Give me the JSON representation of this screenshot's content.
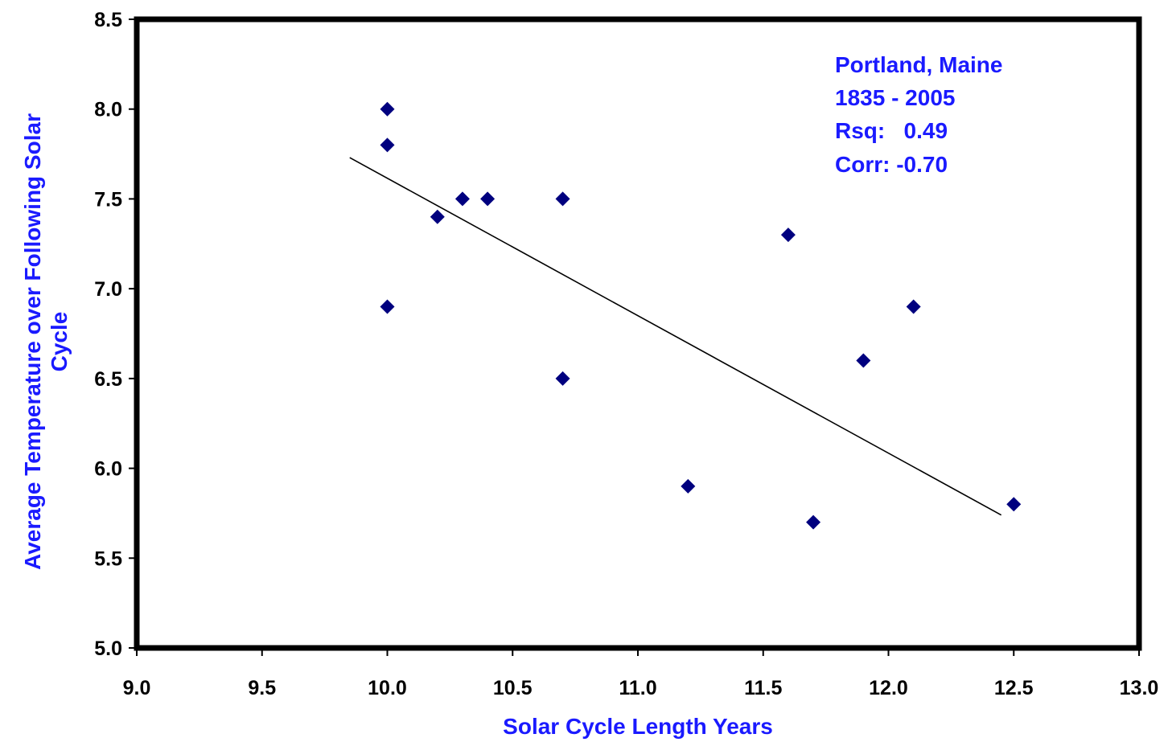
{
  "chart_data": {
    "type": "scatter",
    "xlabel": "Solar Cycle Length Years",
    "ylabel_lines": [
      "Average Temperature over Following Solar",
      "Cycle"
    ],
    "xlim": [
      9.0,
      13.0
    ],
    "ylim": [
      5.0,
      8.5
    ],
    "x_ticks": [
      "9.0",
      "9.5",
      "10.0",
      "10.5",
      "11.0",
      "11.5",
      "12.0",
      "12.5",
      "13.0"
    ],
    "y_ticks": [
      "5.0",
      "5.5",
      "6.0",
      "6.5",
      "7.0",
      "7.5",
      "8.0",
      "8.5"
    ],
    "annotation": [
      "Portland, Maine",
      "1835 - 2005",
      "Rsq:   0.49",
      "Corr: -0.70"
    ],
    "points": [
      {
        "x": 10.0,
        "y": 8.0
      },
      {
        "x": 10.0,
        "y": 7.8
      },
      {
        "x": 10.0,
        "y": 6.9
      },
      {
        "x": 10.2,
        "y": 7.4
      },
      {
        "x": 10.3,
        "y": 7.5
      },
      {
        "x": 10.4,
        "y": 7.5
      },
      {
        "x": 10.7,
        "y": 7.5
      },
      {
        "x": 10.7,
        "y": 6.5
      },
      {
        "x": 11.2,
        "y": 5.9
      },
      {
        "x": 11.6,
        "y": 7.3
      },
      {
        "x": 11.7,
        "y": 5.7
      },
      {
        "x": 11.9,
        "y": 6.6
      },
      {
        "x": 12.1,
        "y": 6.9
      },
      {
        "x": 12.5,
        "y": 5.8
      }
    ],
    "trendline": {
      "x1": 9.85,
      "y1": 7.73,
      "x2": 12.45,
      "y2": 5.74
    },
    "grid": false,
    "legend": "none",
    "colors": {
      "marker": "#00007f",
      "axis_title": "#1a1aff",
      "annotation": "#1a1aff",
      "trendline": "#000000",
      "frame": "#000000"
    }
  }
}
